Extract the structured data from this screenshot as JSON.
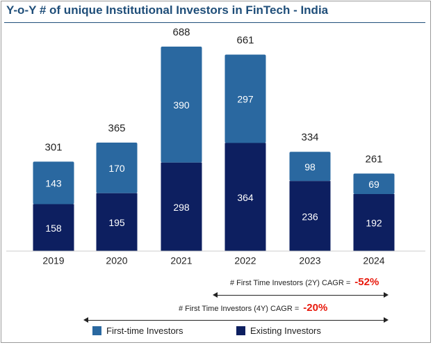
{
  "title": "Y-o-Y  # of unique Institutional Investors in FinTech - India",
  "colors": {
    "first_time": "#2a68a0",
    "existing": "#0d1f60",
    "title": "#1f4e79",
    "cagr_value": "#e8190c"
  },
  "chart_data": {
    "type": "bar",
    "stacked": true,
    "categories": [
      "2019",
      "2020",
      "2021",
      "2022",
      "2023",
      "2024"
    ],
    "series": [
      {
        "name": "Existing Investors",
        "values": [
          158,
          195,
          298,
          364,
          236,
          192
        ]
      },
      {
        "name": "First-time Investors",
        "values": [
          143,
          170,
          390,
          297,
          98,
          69
        ]
      }
    ],
    "totals": [
      301,
      365,
      688,
      661,
      334,
      261
    ],
    "ylim": [
      0,
      688
    ],
    "grid": false,
    "legend": "bottom"
  },
  "annotations": {
    "cagr_2y": {
      "label": "# First Time Investors (2Y) CAGR =",
      "value": "-52%"
    },
    "cagr_4y": {
      "label": "# First Time Investors (4Y) CAGR =",
      "value": "-20%"
    }
  },
  "legend": [
    {
      "label": "First-time Investors",
      "color": "#2a68a0"
    },
    {
      "label": "Existing Investors",
      "color": "#0d1f60"
    }
  ]
}
